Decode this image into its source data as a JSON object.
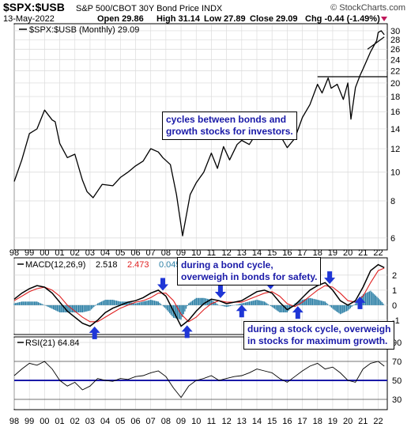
{
  "header": {
    "symbol": "$SPX:$USB",
    "description": "S&P 500/CBOT 30Y Bond Price INDX",
    "date": "13-May-2022",
    "open": "Open 29.86",
    "high": "High 31.14",
    "low": "Low 27.89",
    "close": "Close 29.09",
    "chg": "Chg -0.44 (-1.49%)",
    "brand": "© StockCharts.com"
  },
  "legends": {
    "price": "$SPX:$USB (Monthly) 29.09",
    "macd_label": "MACD(12,26,9)",
    "macd_val1": "2.518",
    "macd_val2": "2.473",
    "macd_val3": "0.045",
    "rsi": "RSI(21) 64.84"
  },
  "annotations": {
    "cycles": [
      "cycles between bonds and",
      "growth stocks for investors."
    ],
    "bond": [
      "during a bond cycle,",
      "overweigh in bonds for safety."
    ],
    "stock": [
      "during a stock cycle, overweigh",
      "in stocks for maximum growth."
    ]
  },
  "colors": {
    "price_line": "#000000",
    "signal_line": "#e02020",
    "histogram": "#2b7fa5",
    "arrow": "#1f36d6",
    "rsi_midline": "#1a1aa8",
    "annotation_text": "#1a1aa8"
  },
  "chart_data": [
    {
      "type": "line",
      "title": "$SPX:$USB",
      "series_label": "$SPX:$USB (Monthly) 29.09",
      "scale": "log",
      "ylim": [
        5.5,
        31.5
      ],
      "y_ticks": [
        6,
        8,
        10,
        12,
        14,
        16,
        18,
        20,
        22,
        24,
        26,
        28,
        30
      ],
      "x_ticks": [
        "98",
        "99",
        "00",
        "01",
        "02",
        "03",
        "04",
        "05",
        "06",
        "07",
        "08",
        "09",
        "10",
        "11",
        "12",
        "13",
        "14",
        "15",
        "16",
        "17",
        "18",
        "19",
        "20",
        "21",
        "22"
      ],
      "x": [
        1998.0,
        1998.5,
        1999.0,
        1999.5,
        2000.0,
        2000.5,
        2000.7,
        2001.0,
        2001.5,
        2002.0,
        2002.5,
        2002.8,
        2003.2,
        2003.8,
        2004.5,
        2005.0,
        2005.5,
        2006.0,
        2006.5,
        2007.0,
        2007.5,
        2007.8,
        2008.3,
        2008.7,
        2009.1,
        2009.6,
        2010.0,
        2010.5,
        2011.0,
        2011.4,
        2011.8,
        2012.2,
        2012.7,
        2013.0,
        2013.5,
        2014.0,
        2014.5,
        2015.0,
        2015.5,
        2016.0,
        2016.5,
        2017.0,
        2017.5,
        2018.0,
        2018.3,
        2018.7,
        2018.9,
        2019.3,
        2019.7,
        2020.0,
        2020.2,
        2020.5,
        2020.8,
        2021.0,
        2021.5,
        2021.9,
        2022.0,
        2022.2,
        2022.4
      ],
      "y": [
        9.3,
        11.0,
        13.5,
        14.0,
        16.2,
        15.0,
        14.8,
        12.5,
        11.2,
        11.5,
        9.4,
        8.6,
        8.2,
        9.1,
        9.0,
        9.6,
        10.0,
        10.5,
        10.9,
        12.0,
        11.7,
        11.2,
        10.6,
        8.4,
        6.1,
        8.4,
        9.2,
        10.0,
        11.6,
        10.3,
        12.2,
        11.0,
        12.4,
        12.8,
        12.4,
        13.6,
        14.2,
        14.2,
        13.4,
        12.1,
        13.0,
        15.3,
        16.9,
        19.8,
        18.5,
        20.8,
        19.2,
        19.8,
        17.6,
        20.0,
        15.1,
        19.3,
        21.2,
        22.3,
        25.5,
        27.8,
        29.6,
        30.0,
        29.1
      ],
      "reference_lines": [
        21.0
      ],
      "support_trendline": {
        "x": [
          2021.3,
          2022.4
        ],
        "y": [
          26.0,
          28.6
        ]
      }
    },
    {
      "type": "line",
      "title": "MACD(12,26,9)",
      "series": [
        {
          "name": "MACD",
          "value": 2.518
        },
        {
          "name": "Signal",
          "value": 2.473
        },
        {
          "name": "Histogram",
          "value": 0.045
        }
      ],
      "ylim": [
        -1.9,
        3.1
      ],
      "y_ticks": [
        -1,
        0,
        1,
        2
      ],
      "x": [
        1998.0,
        1998.5,
        1999.0,
        1999.5,
        2000.0,
        2000.5,
        2001.0,
        2001.5,
        2002.0,
        2002.5,
        2003.0,
        2003.5,
        2004.0,
        2004.5,
        2005.0,
        2005.5,
        2006.0,
        2006.5,
        2007.0,
        2007.5,
        2008.0,
        2008.5,
        2009.0,
        2009.5,
        2010.0,
        2010.5,
        2011.0,
        2011.5,
        2012.0,
        2012.5,
        2013.0,
        2013.5,
        2014.0,
        2014.5,
        2015.0,
        2015.5,
        2016.0,
        2016.5,
        2017.0,
        2017.5,
        2018.0,
        2018.5,
        2019.0,
        2019.5,
        2020.0,
        2020.5,
        2021.0,
        2021.5,
        2022.0,
        2022.4
      ],
      "macd": [
        0.4,
        0.8,
        1.1,
        1.3,
        1.2,
        0.8,
        0.2,
        -0.4,
        -0.8,
        -1.2,
        -1.4,
        -1.0,
        -0.5,
        -0.2,
        0.0,
        0.2,
        0.3,
        0.5,
        0.8,
        1.0,
        0.6,
        -0.4,
        -1.4,
        -1.0,
        -0.4,
        0.1,
        0.4,
        0.3,
        0.1,
        0.2,
        0.3,
        0.6,
        0.9,
        1.0,
        0.8,
        0.2,
        -0.3,
        0.0,
        0.5,
        1.0,
        1.3,
        1.5,
        1.0,
        0.3,
        0.0,
        0.3,
        1.2,
        2.3,
        2.7,
        2.5
      ],
      "signal": [
        0.3,
        0.6,
        0.9,
        1.1,
        1.2,
        1.0,
        0.6,
        0.0,
        -0.4,
        -0.8,
        -1.1,
        -1.1,
        -0.8,
        -0.5,
        -0.2,
        0.0,
        0.2,
        0.3,
        0.5,
        0.8,
        0.8,
        0.3,
        -0.6,
        -1.1,
        -0.8,
        -0.3,
        0.1,
        0.3,
        0.2,
        0.2,
        0.2,
        0.4,
        0.6,
        0.8,
        0.9,
        0.6,
        0.1,
        -0.1,
        0.2,
        0.6,
        1.0,
        1.3,
        1.2,
        0.8,
        0.3,
        0.2,
        0.6,
        1.5,
        2.3,
        2.47
      ],
      "arrows_up": [
        2003.3,
        2009.4,
        2013.0,
        2016.7,
        2020.8
      ],
      "arrows_down": [
        2007.8,
        2011.6,
        2014.9,
        2018.8
      ]
    },
    {
      "type": "line",
      "title": "RSI(21)",
      "series": [
        {
          "name": "RSI(21)",
          "value": 64.84
        }
      ],
      "ylim": [
        20,
        95
      ],
      "y_ticks": [
        30,
        50,
        70,
        90
      ],
      "x": [
        1998.0,
        1998.5,
        1999.0,
        1999.5,
        2000.0,
        2000.5,
        2001.0,
        2001.5,
        2002.0,
        2002.5,
        2003.0,
        2003.5,
        2004.0,
        2004.5,
        2005.0,
        2005.5,
        2006.0,
        2006.5,
        2007.0,
        2007.5,
        2008.0,
        2008.5,
        2009.0,
        2009.5,
        2010.0,
        2010.5,
        2011.0,
        2011.5,
        2012.0,
        2012.5,
        2013.0,
        2013.5,
        2014.0,
        2014.5,
        2015.0,
        2015.5,
        2016.0,
        2016.5,
        2017.0,
        2017.5,
        2018.0,
        2018.5,
        2019.0,
        2019.5,
        2020.0,
        2020.5,
        2021.0,
        2021.5,
        2022.0,
        2022.4
      ],
      "y": [
        55,
        62,
        68,
        66,
        70,
        62,
        50,
        44,
        48,
        40,
        44,
        52,
        50,
        49,
        52,
        51,
        54,
        55,
        58,
        60,
        54,
        42,
        32,
        44,
        50,
        52,
        55,
        50,
        52,
        54,
        55,
        58,
        62,
        60,
        58,
        52,
        48,
        54,
        60,
        65,
        68,
        62,
        64,
        58,
        50,
        48,
        62,
        68,
        70,
        65
      ]
    }
  ]
}
